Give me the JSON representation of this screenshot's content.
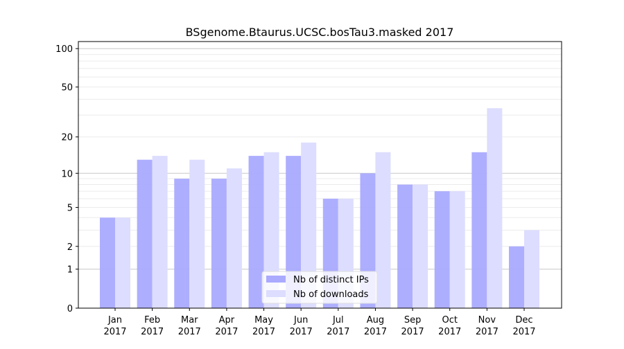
{
  "chart_data": {
    "type": "bar",
    "title": "BSgenome.Btaurus.UCSC.bosTau3.masked 2017",
    "xlabel": "",
    "ylabel": "",
    "yscale": "log(1+y)",
    "ylim": [
      0,
      110
    ],
    "yticks": [
      0,
      1,
      2,
      5,
      10,
      20,
      50,
      100
    ],
    "grid": true,
    "legend_position": "bottom-center",
    "categories": [
      [
        "Jan",
        "2017"
      ],
      [
        "Feb",
        "2017"
      ],
      [
        "Mar",
        "2017"
      ],
      [
        "Apr",
        "2017"
      ],
      [
        "May",
        "2017"
      ],
      [
        "Jun",
        "2017"
      ],
      [
        "Jul",
        "2017"
      ],
      [
        "Aug",
        "2017"
      ],
      [
        "Sep",
        "2017"
      ],
      [
        "Oct",
        "2017"
      ],
      [
        "Nov",
        "2017"
      ],
      [
        "Dec",
        "2017"
      ]
    ],
    "series": [
      {
        "name": "Nb of distinct IPs",
        "color": "#aaaaff",
        "values": [
          4,
          13,
          9,
          9,
          14,
          14,
          6,
          10,
          8,
          7,
          15,
          2
        ]
      },
      {
        "name": "Nb of downloads",
        "color": "#ddddff",
        "values": [
          4,
          14,
          13,
          11,
          15,
          18,
          6,
          15,
          8,
          7,
          34,
          3
        ]
      }
    ]
  }
}
